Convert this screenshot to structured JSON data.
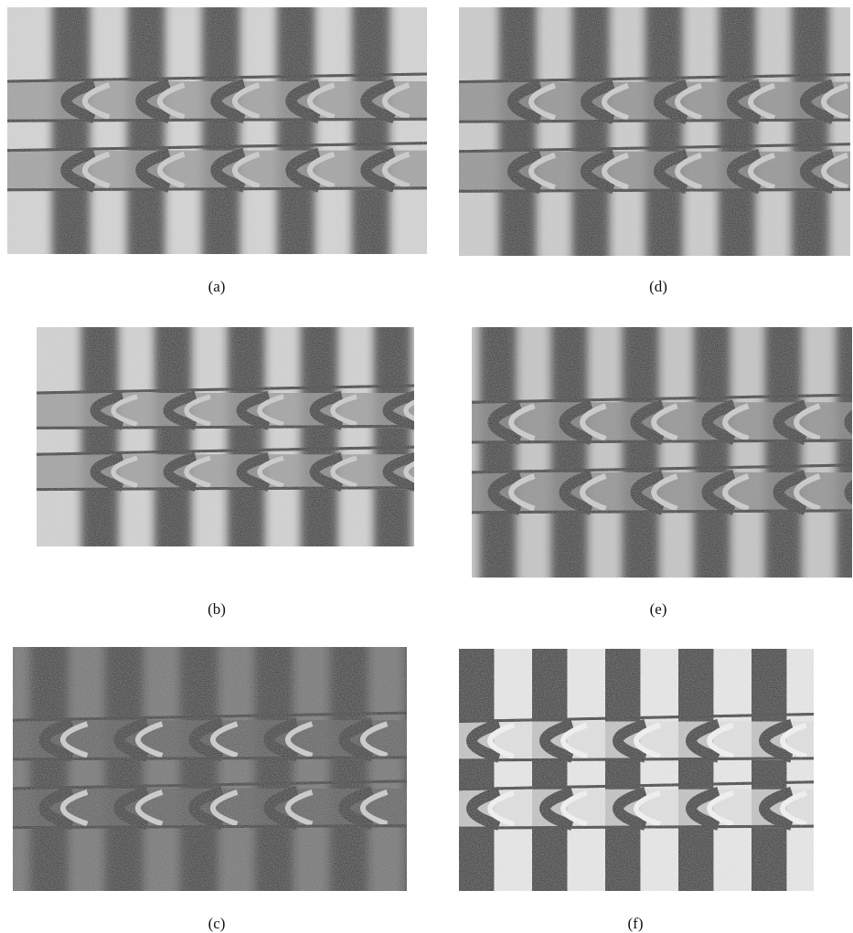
{
  "panels": [
    {
      "label": "(a)"
    },
    {
      "label": "(d)"
    },
    {
      "label": "(b)"
    },
    {
      "label": "(e)"
    },
    {
      "label": "(c)"
    },
    {
      "label": "(f)"
    }
  ]
}
